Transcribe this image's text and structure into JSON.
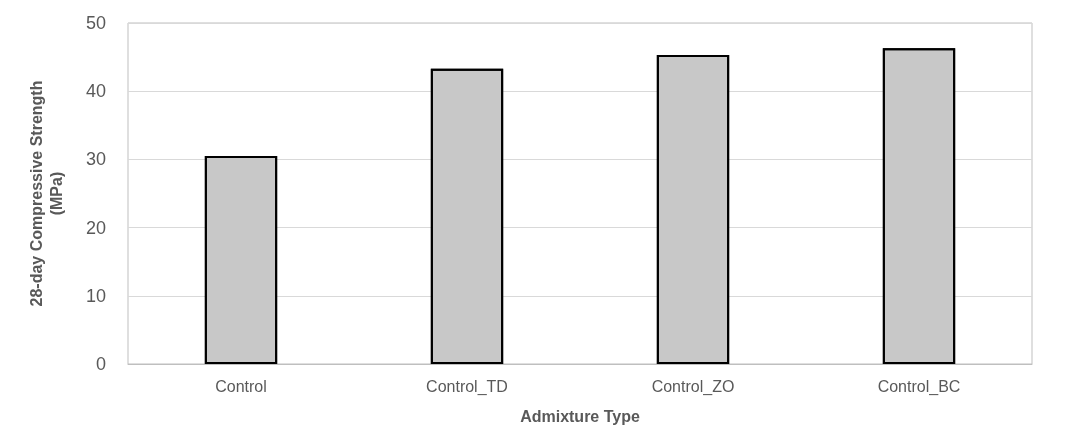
{
  "chart_data": {
    "type": "bar",
    "xlabel": "Admixture Type",
    "ylabel": "28-day Compressive Strength\n(MPa)",
    "categories": [
      "Control",
      "Control_TD",
      "Control_ZO",
      "Control_BC"
    ],
    "values": [
      30.5,
      43.3,
      45.3,
      46.3
    ],
    "color": "#c8c8c8",
    "ylim": [
      0,
      50
    ],
    "yticks": [
      0,
      10,
      20,
      30,
      40,
      50
    ],
    "grid": true
  }
}
